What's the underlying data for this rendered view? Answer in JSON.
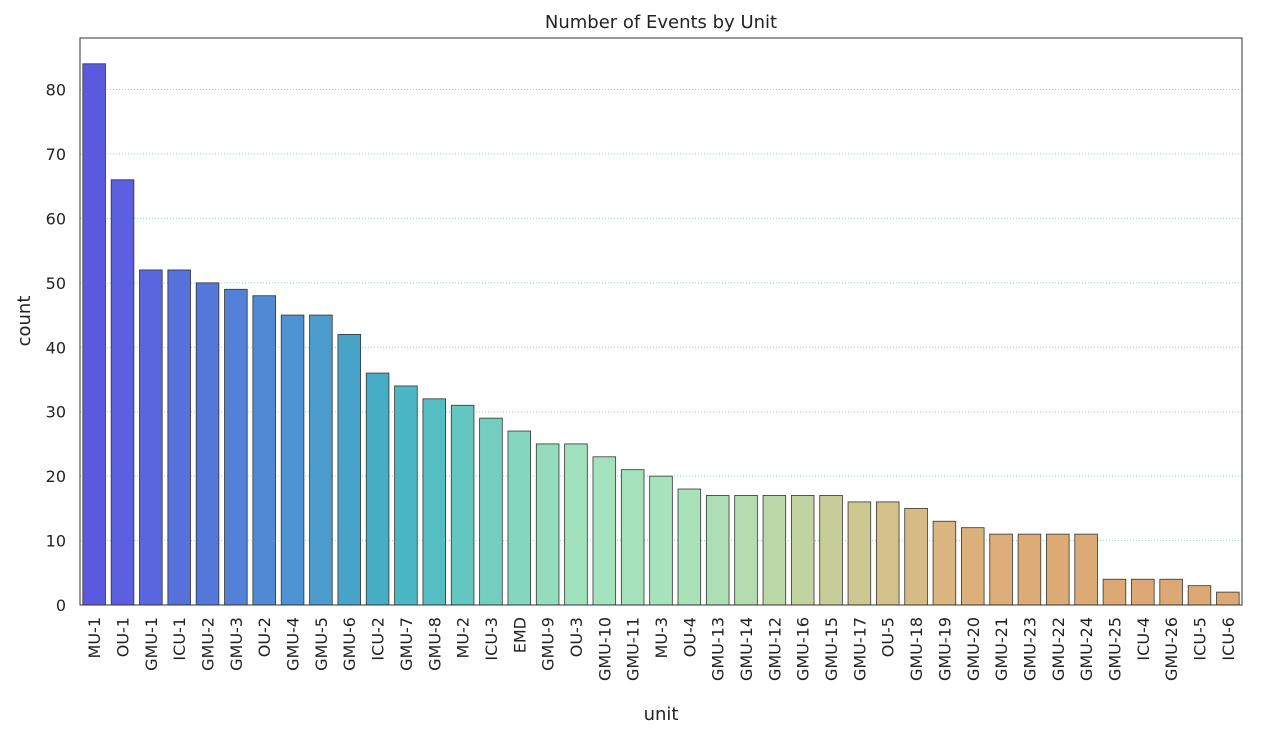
{
  "chart_data": {
    "type": "bar",
    "title": "Number of Events by Unit",
    "xlabel": "unit",
    "ylabel": "count",
    "ylim": [
      0,
      88
    ],
    "yticks": [
      0,
      10,
      20,
      30,
      40,
      50,
      60,
      70,
      80
    ],
    "grid": "horizontal dotted",
    "categories": [
      "MU-1",
      "OU-1",
      "GMU-1",
      "ICU-1",
      "GMU-2",
      "GMU-3",
      "OU-2",
      "GMU-4",
      "GMU-5",
      "GMU-6",
      "ICU-2",
      "GMU-7",
      "GMU-8",
      "MU-2",
      "ICU-3",
      "EMD",
      "GMU-9",
      "OU-3",
      "GMU-10",
      "GMU-11",
      "MU-3",
      "OU-4",
      "GMU-13",
      "GMU-14",
      "GMU-12",
      "GMU-16",
      "GMU-15",
      "GMU-17",
      "OU-5",
      "GMU-18",
      "GMU-19",
      "GMU-20",
      "GMU-21",
      "GMU-23",
      "GMU-22",
      "GMU-24",
      "GMU-25",
      "ICU-4",
      "GMU-26",
      "ICU-5",
      "ICU-6"
    ],
    "values": [
      84,
      66,
      52,
      52,
      50,
      49,
      48,
      45,
      45,
      42,
      36,
      34,
      32,
      31,
      29,
      27,
      25,
      25,
      23,
      21,
      20,
      18,
      17,
      17,
      17,
      17,
      17,
      16,
      16,
      15,
      13,
      12,
      11,
      11,
      11,
      11,
      4,
      4,
      4,
      3,
      2
    ],
    "colors": [
      "#5b59e0",
      "#5b5fe0",
      "#5867de",
      "#5670dc",
      "#5478da",
      "#5281d7",
      "#5089d4",
      "#4d92d1",
      "#4b9bcd",
      "#49a4ca",
      "#47adc7",
      "#4bb6c4",
      "#55bec2",
      "#64c6c0",
      "#74cebf",
      "#85d6be",
      "#95dcbe",
      "#a0e1be",
      "#a4e2bd",
      "#a5e2bc",
      "#a6e2bb",
      "#a9e1b8",
      "#aedfb4",
      "#b4dcae",
      "#bad8a8",
      "#c1d3a1",
      "#c7cd99",
      "#cdc792",
      "#d2c18b",
      "#d7bb85",
      "#dab57f",
      "#dbb07b",
      "#dcad78",
      "#dcab76",
      "#dcaa75",
      "#dcaa75",
      "#dca974",
      "#dca974",
      "#dca974",
      "#dca974",
      "#dca974"
    ]
  }
}
